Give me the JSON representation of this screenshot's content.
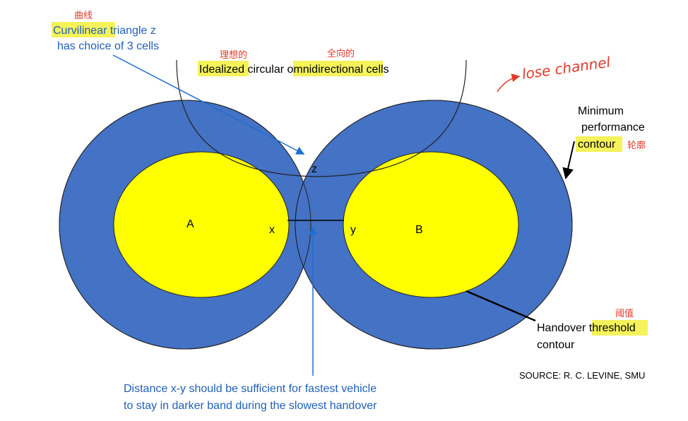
{
  "colors": {
    "outer_band": "#4472c4",
    "inner_cell": "#ffff00",
    "highlight": "#f5f25a",
    "annotation": "#e23a2a",
    "caption_blue": "#1f5fb8"
  },
  "cells": {
    "a_label": "A",
    "b_label": "B",
    "x_label": "x",
    "y_label": "y",
    "z_label": "z"
  },
  "top_note": {
    "word1": "Curvilinear",
    "rest1": " triangle z",
    "line2": "has choice of 3 cells",
    "annotation": "曲线"
  },
  "idealized": {
    "word1": "Idealized",
    "mid": " circular ",
    "word2": "omnidirectional",
    "end": " cells",
    "annotation1": "理想的",
    "annotation2": "全向的"
  },
  "lose_channel": "lose channel",
  "min_perf": {
    "line1": "Minimum",
    "line2": "performance",
    "word3": "contour",
    "annotation": "轮廓"
  },
  "handover": {
    "word1": "Handover ",
    "word2": "threshold",
    "line2": "contour",
    "annotation": "阈值"
  },
  "source": "SOURCE: R. C. LEVINE, SMU",
  "bottom_note": {
    "line1": "Distance x-y should be sufficient for fastest vehicle",
    "line2": "to stay in darker band during the slowest handover"
  }
}
